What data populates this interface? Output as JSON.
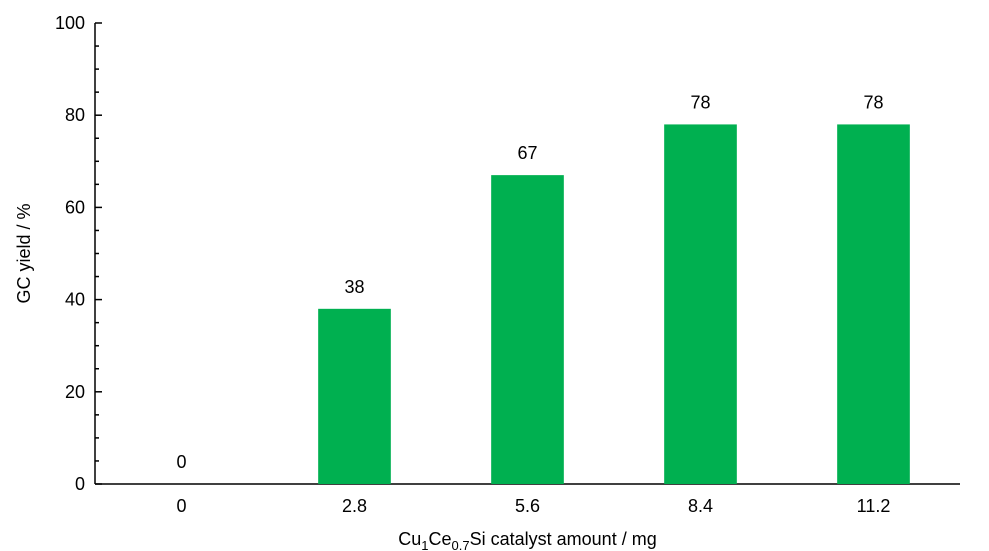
{
  "chart_data": {
    "type": "bar",
    "categories": [
      "0",
      "2.8",
      "5.6",
      "8.4",
      "11.2"
    ],
    "values": [
      0,
      38,
      67,
      78,
      78
    ],
    "data_labels": [
      "0",
      "38",
      "67",
      "78",
      "78"
    ],
    "bar_color": "#00b050",
    "title": "",
    "ylabel": "GC yield / %",
    "xlabel": {
      "parts": [
        {
          "text": "Cu",
          "sub": false
        },
        {
          "text": "1",
          "sub": true
        },
        {
          "text": "Ce",
          "sub": false
        },
        {
          "text": "0.7",
          "sub": true
        },
        {
          "text": "Si catalyst amount / mg",
          "sub": false
        }
      ]
    },
    "ylim": [
      0,
      100
    ],
    "y_ticks": [
      "0",
      "20",
      "40",
      "60",
      "80",
      "100"
    ],
    "grid": false,
    "legend": "none"
  }
}
